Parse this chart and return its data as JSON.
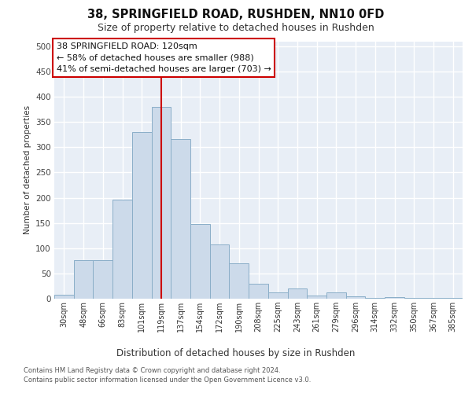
{
  "title": "38, SPRINGFIELD ROAD, RUSHDEN, NN10 0FD",
  "subtitle": "Size of property relative to detached houses in Rushden",
  "xlabel_bottom": "Distribution of detached houses by size in Rushden",
  "ylabel": "Number of detached properties",
  "bar_color": "#ccdaea",
  "bar_edge_color": "#8aaec8",
  "categories": [
    "30sqm",
    "48sqm",
    "66sqm",
    "83sqm",
    "101sqm",
    "119sqm",
    "137sqm",
    "154sqm",
    "172sqm",
    "190sqm",
    "208sqm",
    "225sqm",
    "243sqm",
    "261sqm",
    "279sqm",
    "296sqm",
    "314sqm",
    "332sqm",
    "350sqm",
    "367sqm",
    "385sqm"
  ],
  "values": [
    8,
    77,
    77,
    196,
    330,
    380,
    316,
    148,
    108,
    70,
    29,
    13,
    20,
    6,
    12,
    4,
    1,
    3,
    1,
    1,
    1
  ],
  "vline_index": 5,
  "vline_color": "#cc0000",
  "annotation_line1": "38 SPRINGFIELD ROAD: 120sqm",
  "annotation_line2": "← 58% of detached houses are smaller (988)",
  "annotation_line3": "41% of semi-detached houses are larger (703) →",
  "annotation_box_edge": "#cc0000",
  "ylim": [
    0,
    510
  ],
  "yticks": [
    0,
    50,
    100,
    150,
    200,
    250,
    300,
    350,
    400,
    450,
    500
  ],
  "background_color": "#e8eef6",
  "footer_line1": "Contains HM Land Registry data © Crown copyright and database right 2024.",
  "footer_line2": "Contains public sector information licensed under the Open Government Licence v3.0."
}
